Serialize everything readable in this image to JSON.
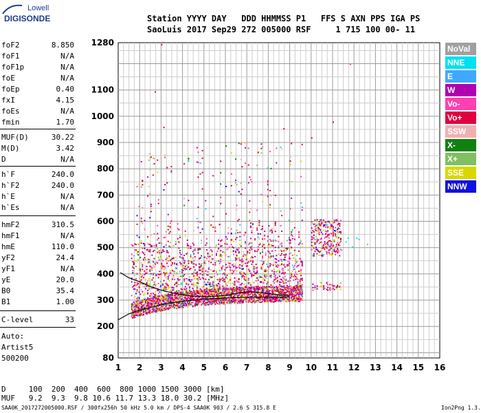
{
  "logo": {
    "top": "Lowell",
    "main": "DIGISONDE"
  },
  "header": {
    "line1": "Station YYYY DAY   DDD HHMMSS P1   FFS S AXN PPS IGA PS",
    "line2": "SaoLuis 2017 Sep29 272 005000 RSF     1 715 100 00- 11"
  },
  "params": [
    {
      "name": "foF2",
      "value": "8.850"
    },
    {
      "name": "foF1",
      "value": "N/A"
    },
    {
      "name": "foF1p",
      "value": "N/A"
    },
    {
      "name": "foE",
      "value": "N/A"
    },
    {
      "name": "foEp",
      "value": "0.40"
    },
    {
      "name": "fxI",
      "value": "4.15"
    },
    {
      "name": "foEs",
      "value": "N/A"
    },
    {
      "name": "fmin",
      "value": "1.70"
    },
    {
      "name": "MUF(D)",
      "value": "30.22"
    },
    {
      "name": "M(D)",
      "value": "3.42"
    },
    {
      "name": "D",
      "value": "N/A"
    },
    {
      "name": "h`F",
      "value": "240.0"
    },
    {
      "name": "h`F2",
      "value": "240.0"
    },
    {
      "name": "h`E",
      "value": "N/A"
    },
    {
      "name": "h`Es",
      "value": "N/A"
    },
    {
      "name": "hmF2",
      "value": "310.5"
    },
    {
      "name": "hmF1",
      "value": "N/A"
    },
    {
      "name": "hmE",
      "value": "110.0"
    },
    {
      "name": "yF2",
      "value": "24.4"
    },
    {
      "name": "yF1",
      "value": "N/A"
    },
    {
      "name": "yE",
      "value": "20.0"
    },
    {
      "name": "B0",
      "value": "35.4"
    },
    {
      "name": "B1",
      "value": "1.00"
    },
    {
      "name": "C-level",
      "value": "33"
    }
  ],
  "auto": {
    "line1": "Auto:",
    "line2": "Artist5",
    "line3": "500200"
  },
  "legend": [
    {
      "label": "NoVal",
      "color": "#a0a0a0"
    },
    {
      "label": "NNE",
      "color": "#00e0f0"
    },
    {
      "label": "E",
      "color": "#40a8ff"
    },
    {
      "label": "W",
      "color": "#b000b0"
    },
    {
      "label": "Vo-",
      "color": "#ff40b0"
    },
    {
      "label": "Vo+",
      "color": "#e00040"
    },
    {
      "label": "SSW",
      "color": "#f0b0b0"
    },
    {
      "label": "X-",
      "color": "#108010"
    },
    {
      "label": "X+",
      "color": "#80c060"
    },
    {
      "label": "SSE",
      "color": "#d8d800"
    },
    {
      "label": "NNW",
      "color": "#1010e0"
    }
  ],
  "muf_table": {
    "d_row": "D     100  200  400  600  800 1000 1500 3000 [km]",
    "muf_row": "MUF   9.2  9.3  9.8 10.6 11.7 13.3 18.0 30.2 [MHz]"
  },
  "footer": {
    "left": "SAA0K_2017272005000.RSF / 300fx256h 50 kHz 5.0 km / DPS-4 SAA0K 903 / 2.6 S 315.8 E",
    "right": "Ion2Png 1.3.17"
  },
  "chart_data": {
    "type": "scatter",
    "x_ticks": [
      "1",
      "2",
      "3",
      "4",
      "5",
      "6",
      "7",
      "8",
      "9",
      "10",
      "11",
      "12",
      "13",
      "14",
      "15",
      "16"
    ],
    "y_ticks": [
      "80",
      "200",
      "300",
      "400",
      "500",
      "600",
      "700",
      "800",
      "900",
      "1000",
      "1100",
      "1280"
    ],
    "xlim": [
      1,
      16
    ],
    "ylim": [
      80,
      1280
    ],
    "grid": true,
    "legend_position": "right",
    "traces": [
      {
        "name": "upper",
        "x": [
          1.1,
          1.5,
          2.0,
          2.5,
          3.0,
          3.5,
          4.0,
          4.5,
          5.0,
          5.5,
          6.0,
          6.5,
          7.0,
          7.5,
          8.0,
          8.5,
          9.0
        ],
        "y": [
          405,
          385,
          370,
          352,
          338,
          328,
          320,
          315,
          313,
          315,
          318,
          325,
          332,
          330,
          325,
          320,
          318
        ]
      },
      {
        "name": "lower",
        "x": [
          1.0,
          1.5,
          2.0,
          2.5,
          3.0,
          3.5,
          4.0,
          4.5,
          5.0,
          5.5,
          6.0,
          6.5,
          7.0,
          7.5,
          8.0,
          8.5,
          9.0
        ],
        "y": [
          225,
          248,
          262,
          272,
          282,
          290,
          296,
          300,
          304,
          306,
          308,
          310,
          311,
          311,
          311,
          311,
          312
        ]
      }
    ]
  }
}
